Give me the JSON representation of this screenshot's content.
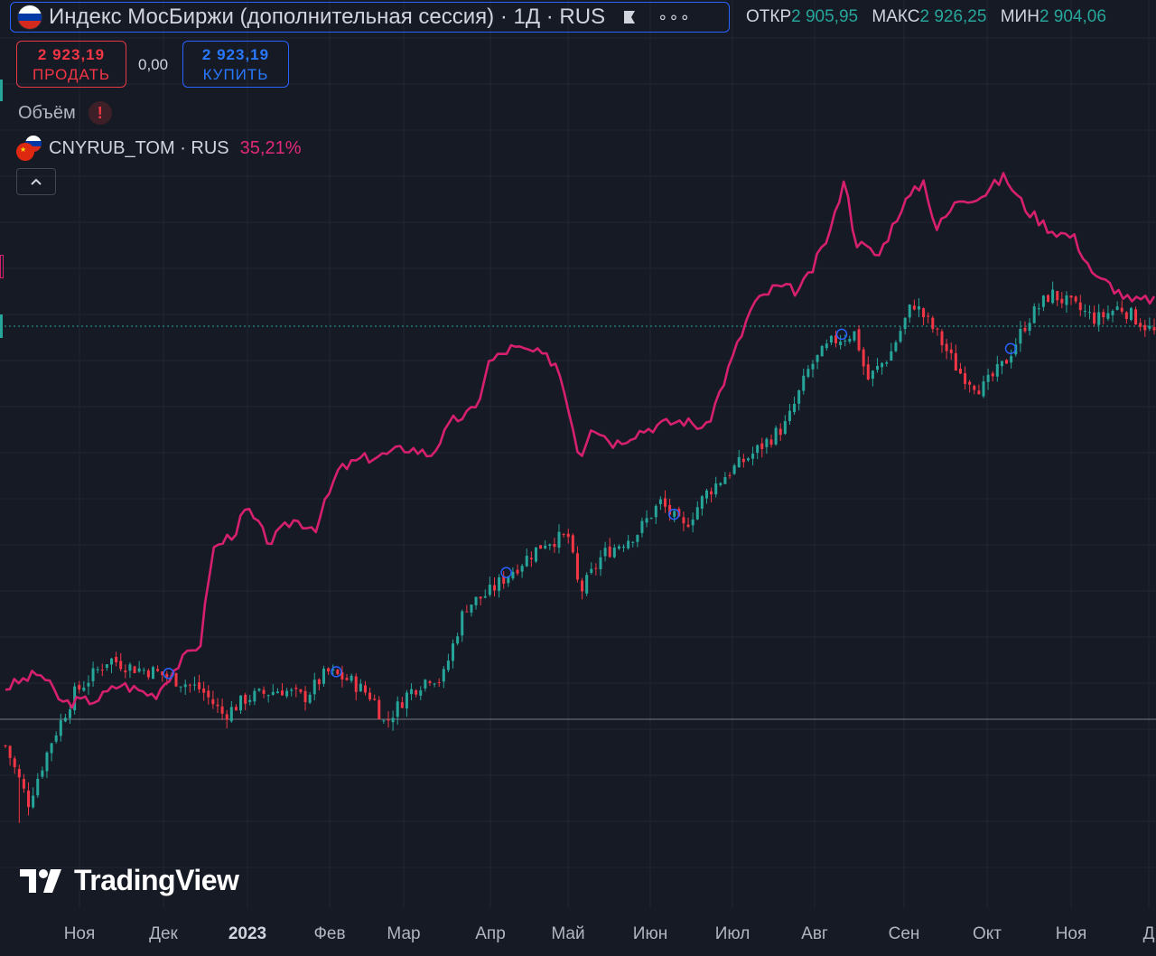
{
  "header": {
    "title": "Индекс МосБиржи (дополнительная сессия) · 1Д · RUS",
    "ohlc": [
      {
        "label": "ОТКР",
        "value": "2 905,95"
      },
      {
        "label": "МАКС",
        "value": "2 926,25"
      },
      {
        "label": "МИН",
        "value": "2 904,06"
      }
    ]
  },
  "trade": {
    "sell_price": "2 923,19",
    "sell_label": "ПРОДАТЬ",
    "spread": "0,00",
    "buy_price": "2 923,19",
    "buy_label": "КУПИТЬ"
  },
  "indicators": {
    "volume_label": "Объём",
    "volume_warning": "!",
    "compare_symbol": "CNYRUB_TOM · RUS",
    "compare_change": "35,21%"
  },
  "branding": {
    "logo_text": "TradingView"
  },
  "colors": {
    "background": "#161a25",
    "up": "#26a69a",
    "down": "#f23645",
    "compare_line": "#d6206f",
    "accent": "#2962ff"
  },
  "chart_data": {
    "type": "candlestick",
    "title": "Индекс МосБиржи (дополнительная сессия) · 1Д · RUS",
    "x_tick_labels": [
      "Ноя",
      "Дек",
      "2023",
      "Фев",
      "Мар",
      "Апр",
      "Май",
      "Июн",
      "Июл",
      "Авг",
      "Сен",
      "Окт",
      "Ноя",
      "Д"
    ],
    "price_path_normalized": [
      [
        0,
        0.18
      ],
      [
        0.02,
        0.05
      ],
      [
        0.04,
        0.19
      ],
      [
        0.06,
        0.3
      ],
      [
        0.09,
        0.38
      ],
      [
        0.11,
        0.36
      ],
      [
        0.13,
        0.35
      ],
      [
        0.15,
        0.33
      ],
      [
        0.17,
        0.31
      ],
      [
        0.19,
        0.25
      ],
      [
        0.21,
        0.29
      ],
      [
        0.24,
        0.31
      ],
      [
        0.26,
        0.29
      ],
      [
        0.28,
        0.35
      ],
      [
        0.3,
        0.33
      ],
      [
        0.32,
        0.29
      ],
      [
        0.33,
        0.23
      ],
      [
        0.35,
        0.3
      ],
      [
        0.37,
        0.34
      ],
      [
        0.38,
        0.33
      ],
      [
        0.4,
        0.5
      ],
      [
        0.42,
        0.53
      ],
      [
        0.44,
        0.58
      ],
      [
        0.47,
        0.65
      ],
      [
        0.49,
        0.66
      ],
      [
        0.5,
        0.53
      ],
      [
        0.52,
        0.62
      ],
      [
        0.55,
        0.67
      ],
      [
        0.57,
        0.74
      ],
      [
        0.59,
        0.68
      ],
      [
        0.61,
        0.76
      ],
      [
        0.63,
        0.81
      ],
      [
        0.65,
        0.85
      ],
      [
        0.68,
        0.92
      ],
      [
        0.7,
        1.05
      ],
      [
        0.72,
        1.11
      ],
      [
        0.74,
        1.13
      ],
      [
        0.75,
        1.02
      ],
      [
        0.77,
        1.08
      ],
      [
        0.79,
        1.2
      ],
      [
        0.81,
        1.13
      ],
      [
        0.83,
        1.04
      ],
      [
        0.85,
        1.0
      ],
      [
        0.87,
        1.06
      ],
      [
        0.89,
        1.16
      ],
      [
        0.91,
        1.22
      ],
      [
        0.93,
        1.19
      ],
      [
        0.95,
        1.16
      ],
      [
        0.97,
        1.19
      ],
      [
        1.0,
        1.13
      ]
    ],
    "compare_series": {
      "name": "CNYRUB_TOM",
      "change_label": "35,21%",
      "path_normalized": [
        [
          0,
          0.12
        ],
        [
          0.03,
          0.16
        ],
        [
          0.05,
          0.08
        ],
        [
          0.08,
          0.09
        ],
        [
          0.1,
          0.13
        ],
        [
          0.13,
          0.1
        ],
        [
          0.15,
          0.18
        ],
        [
          0.17,
          0.24
        ],
        [
          0.18,
          0.48
        ],
        [
          0.2,
          0.53
        ],
        [
          0.21,
          0.59
        ],
        [
          0.23,
          0.5
        ],
        [
          0.25,
          0.56
        ],
        [
          0.27,
          0.54
        ],
        [
          0.29,
          0.69
        ],
        [
          0.31,
          0.72
        ],
        [
          0.33,
          0.73
        ],
        [
          0.35,
          0.75
        ],
        [
          0.37,
          0.73
        ],
        [
          0.39,
          0.82
        ],
        [
          0.41,
          0.85
        ],
        [
          0.42,
          0.97
        ],
        [
          0.44,
          1.01
        ],
        [
          0.46,
          1.0
        ],
        [
          0.48,
          0.97
        ],
        [
          0.49,
          0.86
        ],
        [
          0.5,
          0.72
        ],
        [
          0.51,
          0.81
        ],
        [
          0.53,
          0.76
        ],
        [
          0.55,
          0.79
        ],
        [
          0.57,
          0.81
        ],
        [
          0.59,
          0.82
        ],
        [
          0.61,
          0.8
        ],
        [
          0.63,
          0.96
        ],
        [
          0.65,
          1.12
        ],
        [
          0.67,
          1.17
        ],
        [
          0.69,
          1.16
        ],
        [
          0.7,
          1.2
        ],
        [
          0.72,
          1.33
        ],
        [
          0.73,
          1.46
        ],
        [
          0.74,
          1.29
        ],
        [
          0.76,
          1.25
        ],
        [
          0.78,
          1.38
        ],
        [
          0.8,
          1.45
        ],
        [
          0.81,
          1.32
        ],
        [
          0.83,
          1.4
        ],
        [
          0.85,
          1.41
        ],
        [
          0.87,
          1.46
        ],
        [
          0.88,
          1.41
        ],
        [
          0.89,
          1.37
        ],
        [
          0.91,
          1.32
        ],
        [
          0.93,
          1.3
        ],
        [
          0.95,
          1.19
        ],
        [
          0.96,
          1.18
        ],
        [
          0.98,
          1.13
        ],
        [
          1.0,
          1.14
        ]
      ]
    }
  }
}
